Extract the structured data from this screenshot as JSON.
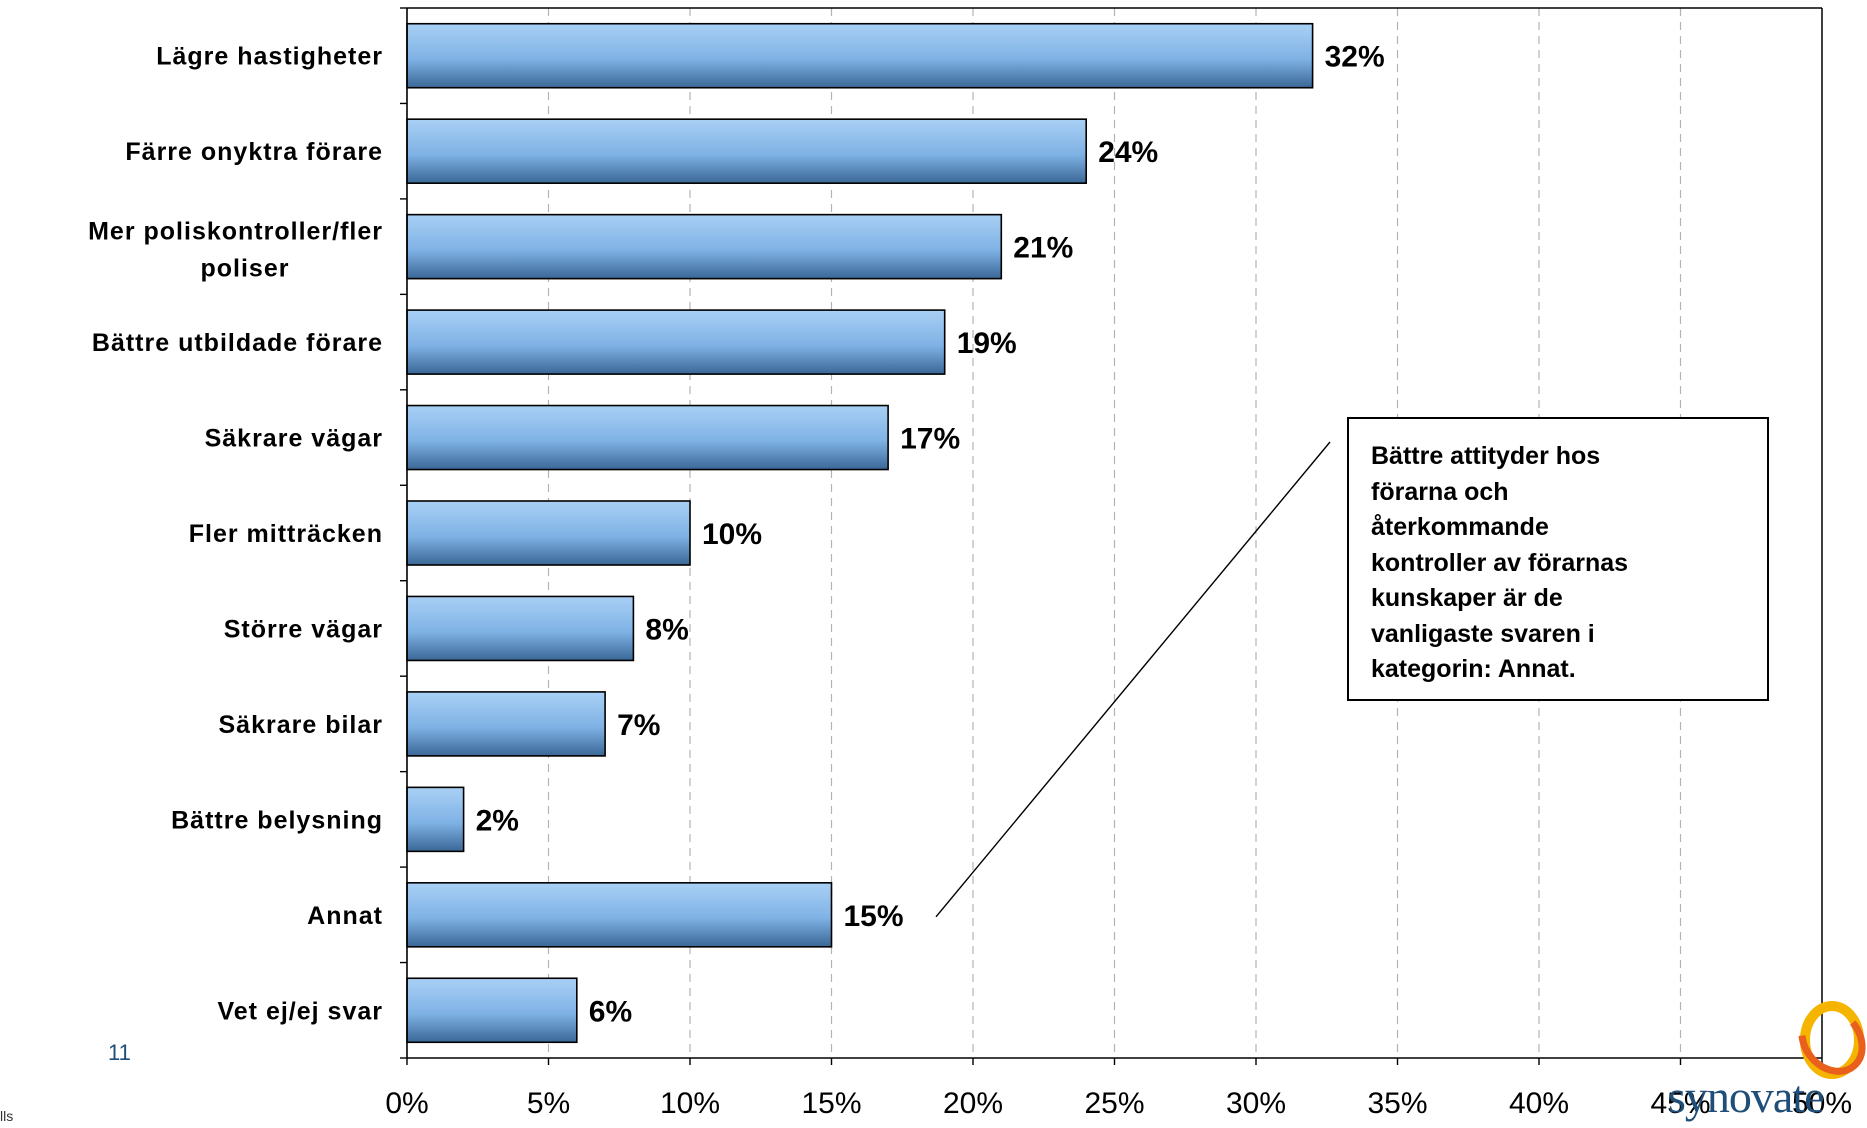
{
  "chart_data": {
    "type": "bar",
    "orientation": "horizontal",
    "categories": [
      "Lägre hastigheter",
      "Färre onyktra förare",
      "Mer poliskontroller/fler poliser",
      "Bättre utbildade förare",
      "Säkrare vägar",
      "Fler mitträcken",
      "Större vägar",
      "Säkrare bilar",
      "Bättre belysning",
      "Annat",
      "Vet ej/ej svar"
    ],
    "values": [
      32,
      24,
      21,
      19,
      17,
      10,
      8,
      7,
      2,
      15,
      6
    ],
    "value_labels": [
      "32%",
      "24%",
      "21%",
      "19%",
      "17%",
      "10%",
      "8%",
      "7%",
      "2%",
      "15%",
      "6%"
    ],
    "xlim": [
      0,
      50
    ],
    "x_ticks": [
      "0%",
      "5%",
      "10%",
      "15%",
      "20%",
      "25%",
      "30%",
      "35%",
      "40%",
      "45%",
      "50%"
    ],
    "grid": "vertical dashed",
    "bar_color": "#7fb2e5",
    "annotation": "Bättre attityder hos förarna och återkommande kontroller av förarnas kunskaper är de vanligaste svaren i kategorin: Annat."
  },
  "callout_lines": [
    "Bättre attityder hos",
    "förarna och",
    "återkommande",
    "kontroller av förarnas",
    "kunskaper är de",
    "vanligaste svaren i",
    "kategorin: Annat."
  ],
  "footer": {
    "page_number": "11",
    "corner_mark": "lls",
    "logo_text": "synovate"
  }
}
